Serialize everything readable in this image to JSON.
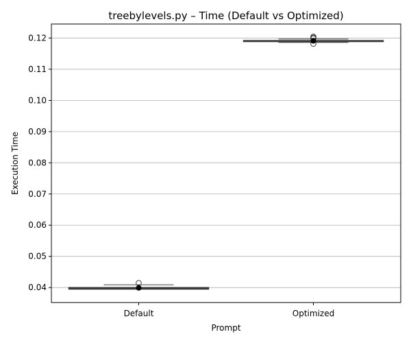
{
  "chart_data": {
    "type": "box",
    "title": "treebylevels.py – Time (Default vs Optimized)",
    "xlabel": "Prompt",
    "ylabel": "Execution Time",
    "categories": [
      "Default",
      "Optimized"
    ],
    "boxes": [
      {
        "category": "Default",
        "whisker_low": 0.0395,
        "q1": 0.0395,
        "median": 0.0398,
        "q3": 0.04,
        "whisker_high": 0.0409,
        "outliers": [
          0.04145
        ],
        "mean": 0.0399
      },
      {
        "category": "Optimized",
        "whisker_low": 0.1186,
        "q1": 0.119,
        "median": 0.1191,
        "q3": 0.1192,
        "whisker_high": 0.1197,
        "outliers": [
          0.11815,
          0.1199,
          0.12015,
          0.12045
        ],
        "mean": 0.1191
      }
    ],
    "ylim": [
      0.0352,
      0.1245
    ],
    "yticks": [
      "0.04",
      "0.05",
      "0.06",
      "0.07",
      "0.08",
      "0.09",
      "0.10",
      "0.11",
      "0.12"
    ],
    "grid": "y",
    "colors": {
      "box_edge": "#3a3a3a",
      "grid": "#b0b0b0",
      "mean_marker": "#000000",
      "axes": "#000000"
    }
  }
}
